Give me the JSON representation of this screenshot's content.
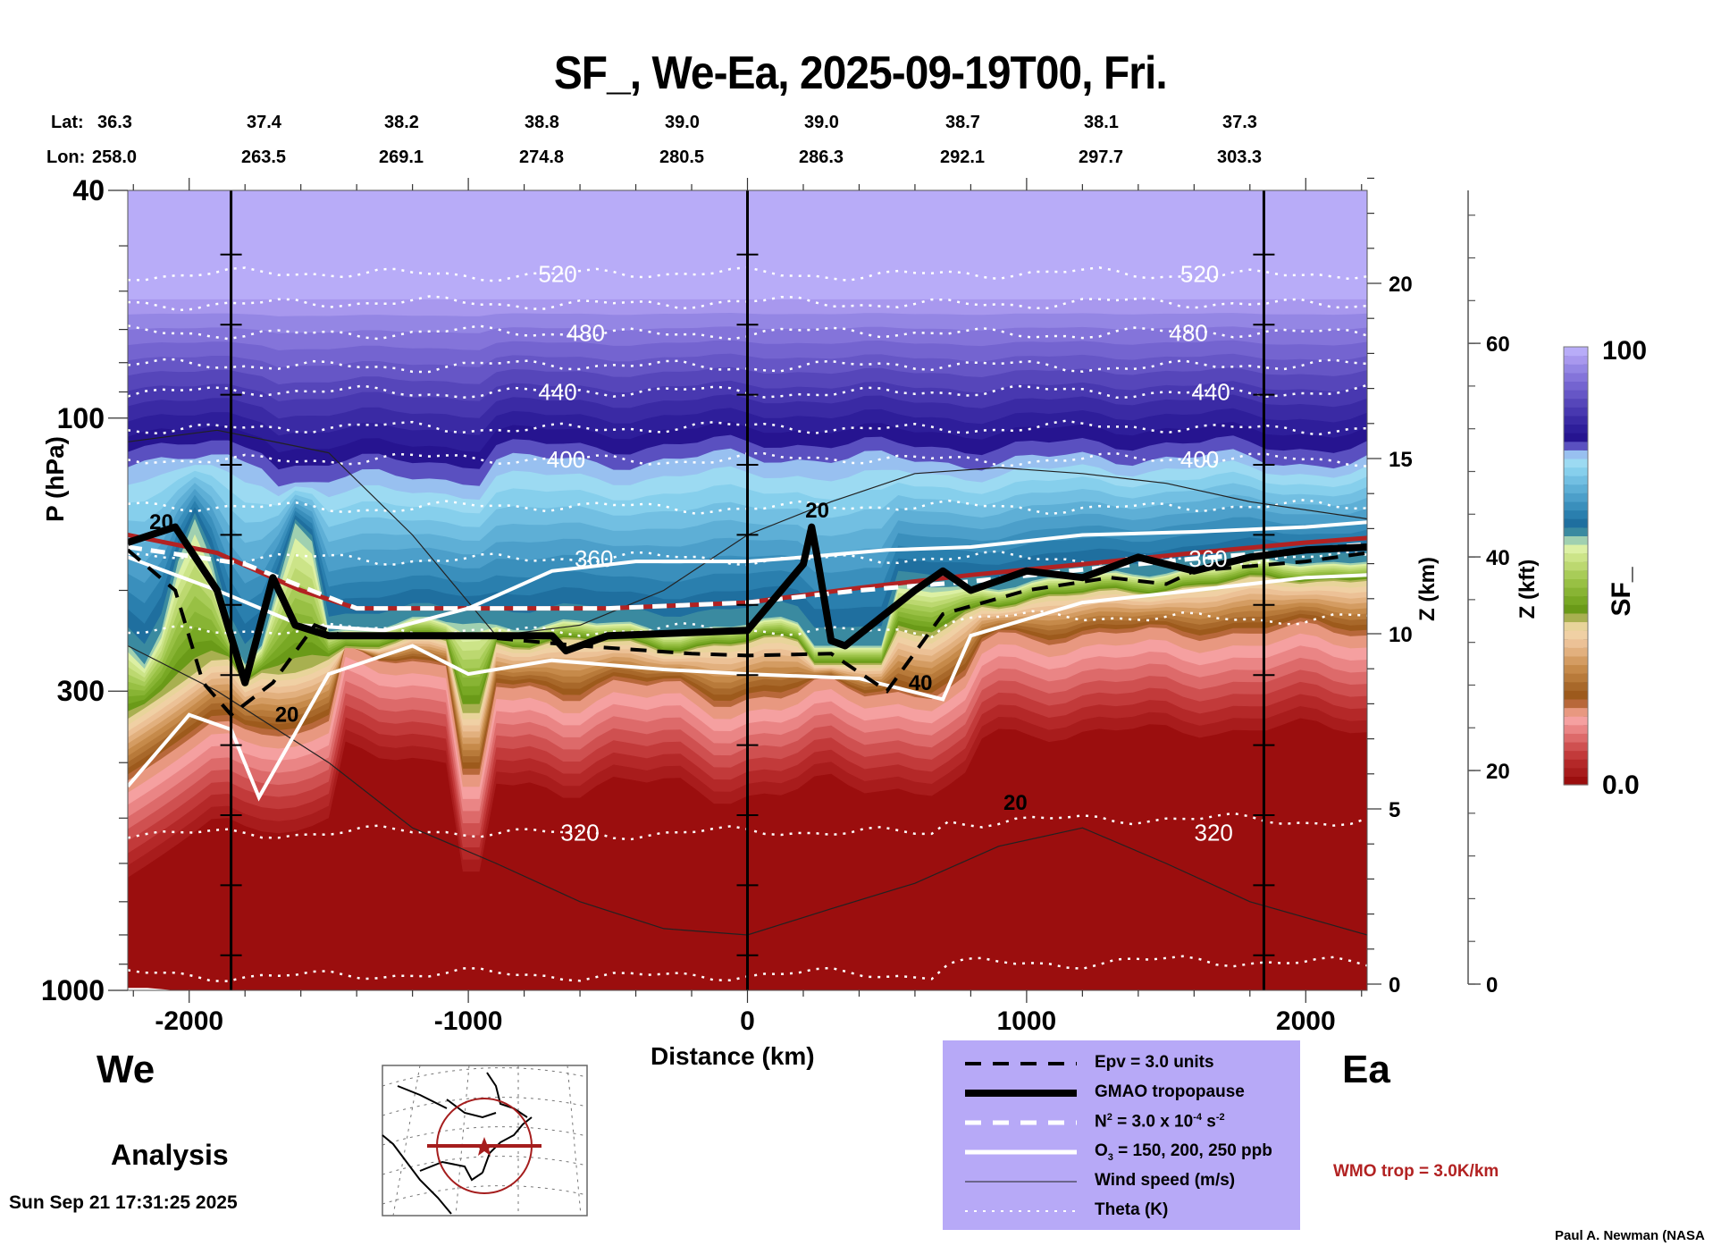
{
  "title": "SF_, We-Ea, 2025-09-19T00, Fri.",
  "lat_label": "Lat:",
  "lon_label": "Lon:",
  "lat_values": [
    "36.3",
    "37.4",
    "38.2",
    "38.8",
    "39.0",
    "39.0",
    "38.7",
    "38.1",
    "37.3"
  ],
  "lon_values": [
    "258.0",
    "263.5",
    "269.1",
    "274.8",
    "280.5",
    "286.3",
    "292.1",
    "297.7",
    "303.3"
  ],
  "direction_left": "We",
  "direction_right": "Ea",
  "analysis_label": "Analysis",
  "timestamp": "Sun Sep 21 17:31:25 2025",
  "credit": "Paul A. Newman (NASA",
  "wmo_label": "WMO trop = 3.0K/km",
  "colors": {
    "wmo_trop": "#b22222",
    "legend_bg": "#b7a9f7",
    "plot_top": "#b8acf8"
  },
  "legend": [
    {
      "label": "Epv = 3.0 units",
      "style": "black-dashed"
    },
    {
      "label": "GMAO tropopause",
      "style": "black-thick"
    },
    {
      "label_main": "N",
      "label_sup1": "2",
      "label_mid": " = 3.0 x 10",
      "label_sup2": "-4",
      "label_tail": " s",
      "label_sup3": "-2",
      "style": "white-dashed"
    },
    {
      "label_main": "O",
      "label_sub": "3",
      "label_tail": " = 150, 200, 250 ppb",
      "style": "white-solid"
    },
    {
      "label": "Wind speed (m/s)",
      "style": "black-thin"
    },
    {
      "label": "Theta (K)",
      "style": "white-dotted"
    }
  ],
  "chart_data": {
    "type": "heatmap",
    "title": "SF_, We-Ea, 2025-09-19T00, Fri.",
    "xlabel": "Distance (km)",
    "ylabel": "P (hPa)",
    "ylabel_right_1": "Z (km)",
    "ylabel_right_2": "Z (kft)",
    "colorbar_label": "SF_",
    "xlim": [
      -2220,
      2220
    ],
    "ylim": [
      1000,
      40
    ],
    "yscale": "log",
    "x_ticks": [
      -2000,
      -1000,
      0,
      1000,
      2000
    ],
    "x_tick_labels": [
      "-2000",
      "-1000",
      "0",
      "1000",
      "2000"
    ],
    "y_ticks": [
      40,
      100,
      300,
      1000
    ],
    "y_tick_labels": [
      "40",
      "100",
      "300",
      "1000"
    ],
    "z_km_ticks": [
      0,
      5,
      10,
      15,
      20
    ],
    "z_km_tick_labels": [
      "0",
      "5",
      "10",
      "15",
      "20"
    ],
    "z_kft_ticks": [
      0,
      20,
      40,
      60
    ],
    "z_kft_tick_labels": [
      "0",
      "20",
      "40",
      "60"
    ],
    "colorbar_range": [
      0.0,
      100
    ],
    "colorbar_tick_labels": [
      "0.0",
      "100"
    ],
    "colorbar_colors": [
      "#9b0e0e",
      "#a81c1c",
      "#b42828",
      "#c23a3a",
      "#cf5050",
      "#dd6a6a",
      "#ea8585",
      "#f5a0a0",
      "#e89880",
      "#b8683a",
      "#9d5a1c",
      "#a8682a",
      "#b87a3a",
      "#c68a4a",
      "#d49c62",
      "#e2b07e",
      "#ecc196",
      "#f0d0a4",
      "#e8d49a",
      "#a8b050",
      "#6a9a18",
      "#78a824",
      "#88b434",
      "#98c044",
      "#a8cc58",
      "#bcd870",
      "#cce488",
      "#dcf0a4",
      "#a0d0b0",
      "#3a8aa0",
      "#1f6f9f",
      "#2a7fae",
      "#3a8fbc",
      "#4c9fca",
      "#5eafd6",
      "#72bfe2",
      "#86cfec",
      "#9cdaf2",
      "#98c0f0",
      "#5a50c0",
      "#261490",
      "#2e1e9a",
      "#3a2aa4",
      "#4838b0",
      "#5646ba",
      "#6656c6",
      "#7464d0",
      "#8474da",
      "#9486e4",
      "#a898ee",
      "#b8acf8"
    ],
    "vertical_reference_lines_km": [
      -1850,
      0,
      1850
    ],
    "theta_contours_K": [
      {
        "value": 520,
        "label_x_km": [
          -680,
          1620
        ]
      },
      {
        "value": 480,
        "label_x_km": [
          -580,
          1580
        ]
      },
      {
        "value": 440,
        "label_x_km": [
          -680,
          1660
        ]
      },
      {
        "value": 400,
        "label_x_km": [
          -650,
          1620
        ]
      },
      {
        "value": 360,
        "label_x_km": [
          -550,
          1650
        ]
      },
      {
        "value": 320,
        "label_x_km": [
          -600,
          1670
        ]
      }
    ],
    "wind_speed_labels_ms": [
      {
        "value": 20,
        "x_km": -2100,
        "p_hpa": 152
      },
      {
        "value": 20,
        "x_km": -1650,
        "p_hpa": 330
      },
      {
        "value": 20,
        "x_km": 250,
        "p_hpa": 145
      },
      {
        "value": 40,
        "x_km": 620,
        "p_hpa": 290
      },
      {
        "value": 20,
        "x_km": 960,
        "p_hpa": 470
      }
    ],
    "series": [
      {
        "name": "WMO tropopause (hPa)",
        "x": [
          -2220,
          -1900,
          -1600,
          -1400,
          -1000,
          -500,
          0,
          400,
          800,
          1200,
          1600,
          2000,
          2220
        ],
        "values": [
          160,
          172,
          200,
          215,
          215,
          215,
          210,
          198,
          188,
          180,
          172,
          165,
          162
        ]
      },
      {
        "name": "GMAO tropopause (hPa)",
        "x": [
          -2220,
          -2050,
          -1900,
          -1800,
          -1700,
          -1620,
          -1500,
          -1450,
          -1000,
          -700,
          -650,
          -500,
          0,
          200,
          230,
          250,
          300,
          350,
          600,
          700,
          800,
          1000,
          1200,
          1400,
          1600,
          1800,
          2000,
          2220
        ],
        "values": [
          165,
          155,
          200,
          290,
          190,
          230,
          240,
          240,
          240,
          240,
          255,
          240,
          235,
          180,
          155,
          175,
          245,
          250,
          200,
          185,
          200,
          185,
          190,
          175,
          185,
          175,
          170,
          168
        ]
      },
      {
        "name": "N2 = 3.0e-4 (hPa)",
        "x": [
          -2220,
          -1800,
          -1400,
          -1000,
          -500,
          0,
          400,
          800,
          1200,
          1600,
          2000,
          2220
        ],
        "values": [
          168,
          180,
          215,
          215,
          215,
          210,
          200,
          193,
          184,
          176,
          170,
          166
        ]
      },
      {
        "name": "Epv = 3.0 (hPa)",
        "x": [
          -2220,
          -2050,
          -1950,
          -1850,
          -1700,
          -1550,
          -1450,
          -1000,
          -600,
          -200,
          0,
          300,
          500,
          700,
          1000,
          1300,
          1500,
          1600,
          2000,
          2220
        ],
        "values": [
          170,
          200,
          290,
          330,
          290,
          230,
          240,
          240,
          250,
          258,
          260,
          258,
          300,
          220,
          200,
          190,
          195,
          185,
          178,
          172
        ]
      }
    ]
  }
}
